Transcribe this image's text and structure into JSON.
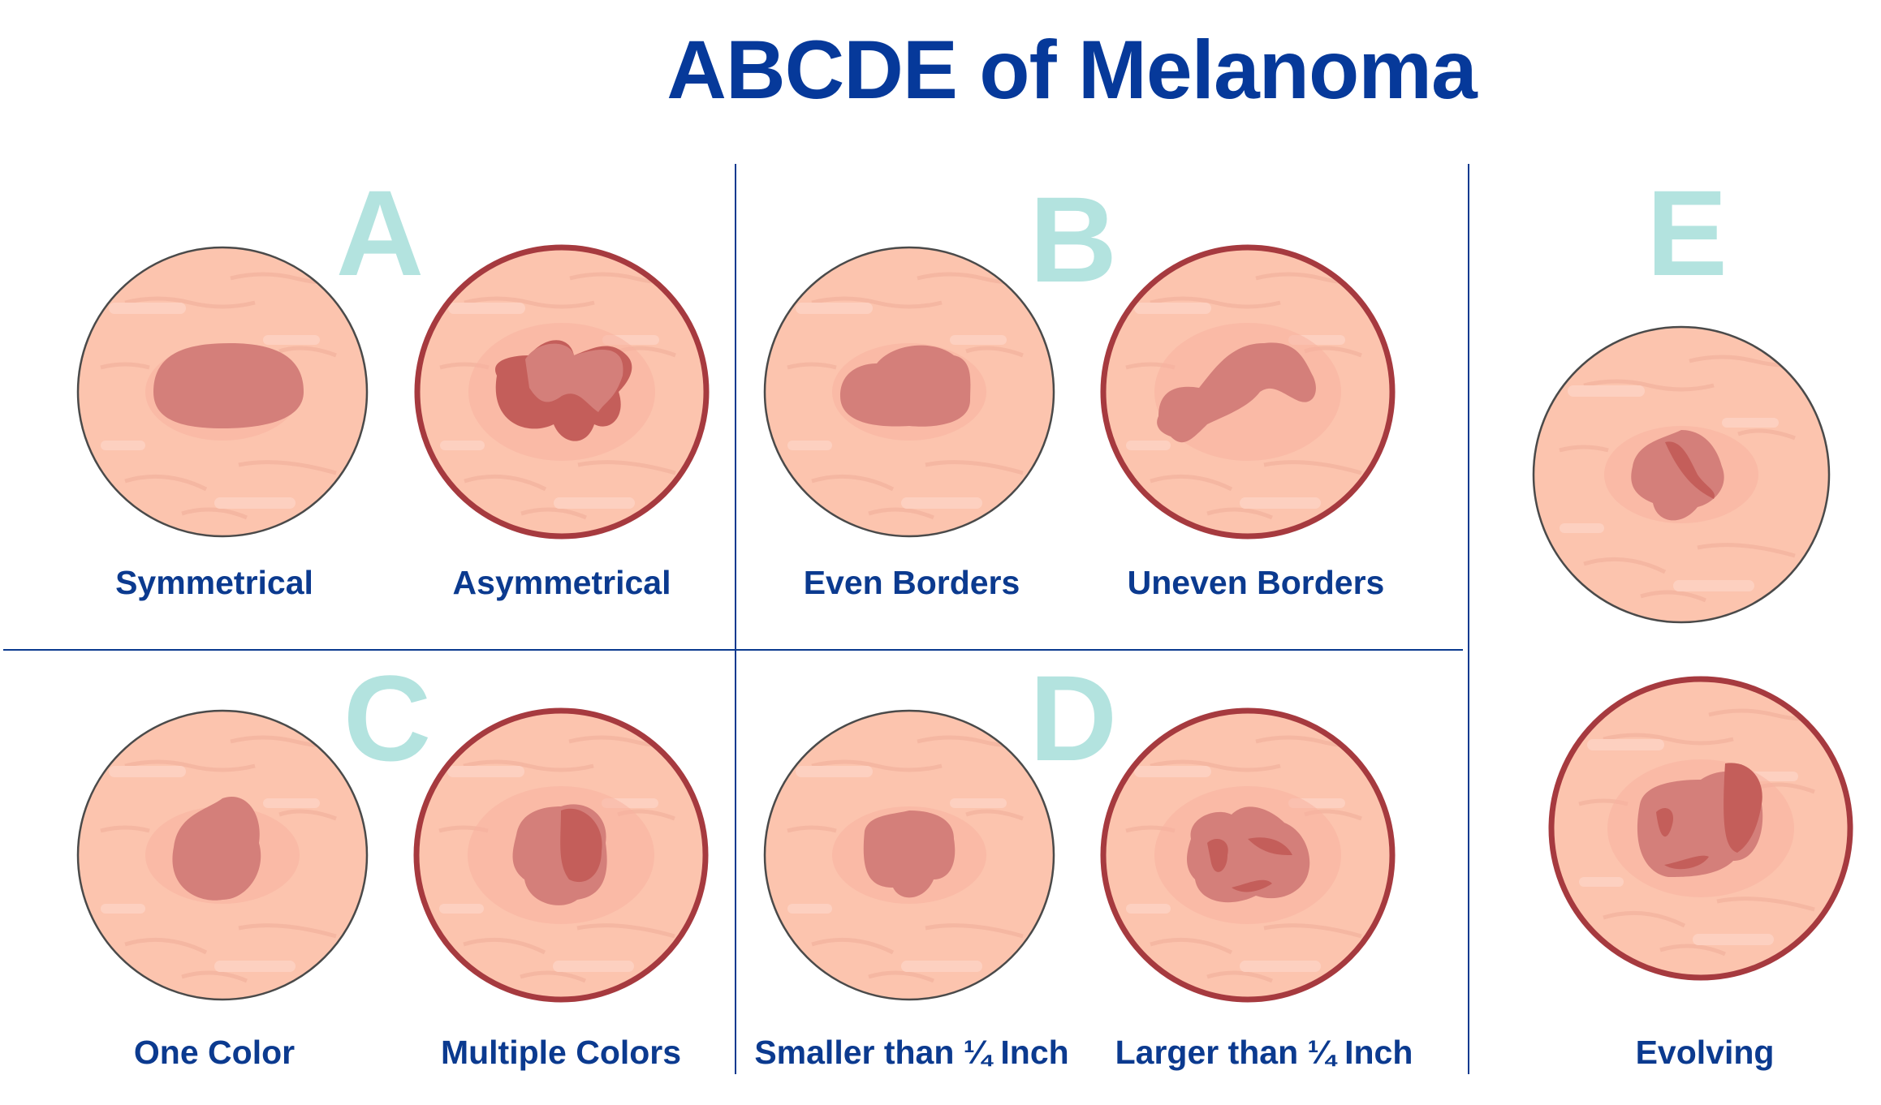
{
  "title": "ABCDE of Melanoma",
  "colors": {
    "title": "#06399a",
    "letters": "#b3e3df",
    "skin": "#fcc4ae",
    "lesion": "#d47f7a",
    "lesion_dark": "#c45e5a",
    "abnormal_outline": "#a63a3f",
    "normal_outline": "#4a4a4a"
  },
  "sections": {
    "A": {
      "letter": "A",
      "normal": "Symmetrical",
      "abnormal": "Asymmetrical"
    },
    "B": {
      "letter": "B",
      "normal": "Even Borders",
      "abnormal": "Uneven Borders"
    },
    "C": {
      "letter": "C",
      "normal": "One Color",
      "abnormal": "Multiple Colors"
    },
    "D": {
      "letter": "D",
      "normal": "Smaller than ¼ Inch",
      "abnormal": "Larger than ¼ Inch"
    },
    "E": {
      "letter": "E",
      "label": "Evolving"
    }
  }
}
